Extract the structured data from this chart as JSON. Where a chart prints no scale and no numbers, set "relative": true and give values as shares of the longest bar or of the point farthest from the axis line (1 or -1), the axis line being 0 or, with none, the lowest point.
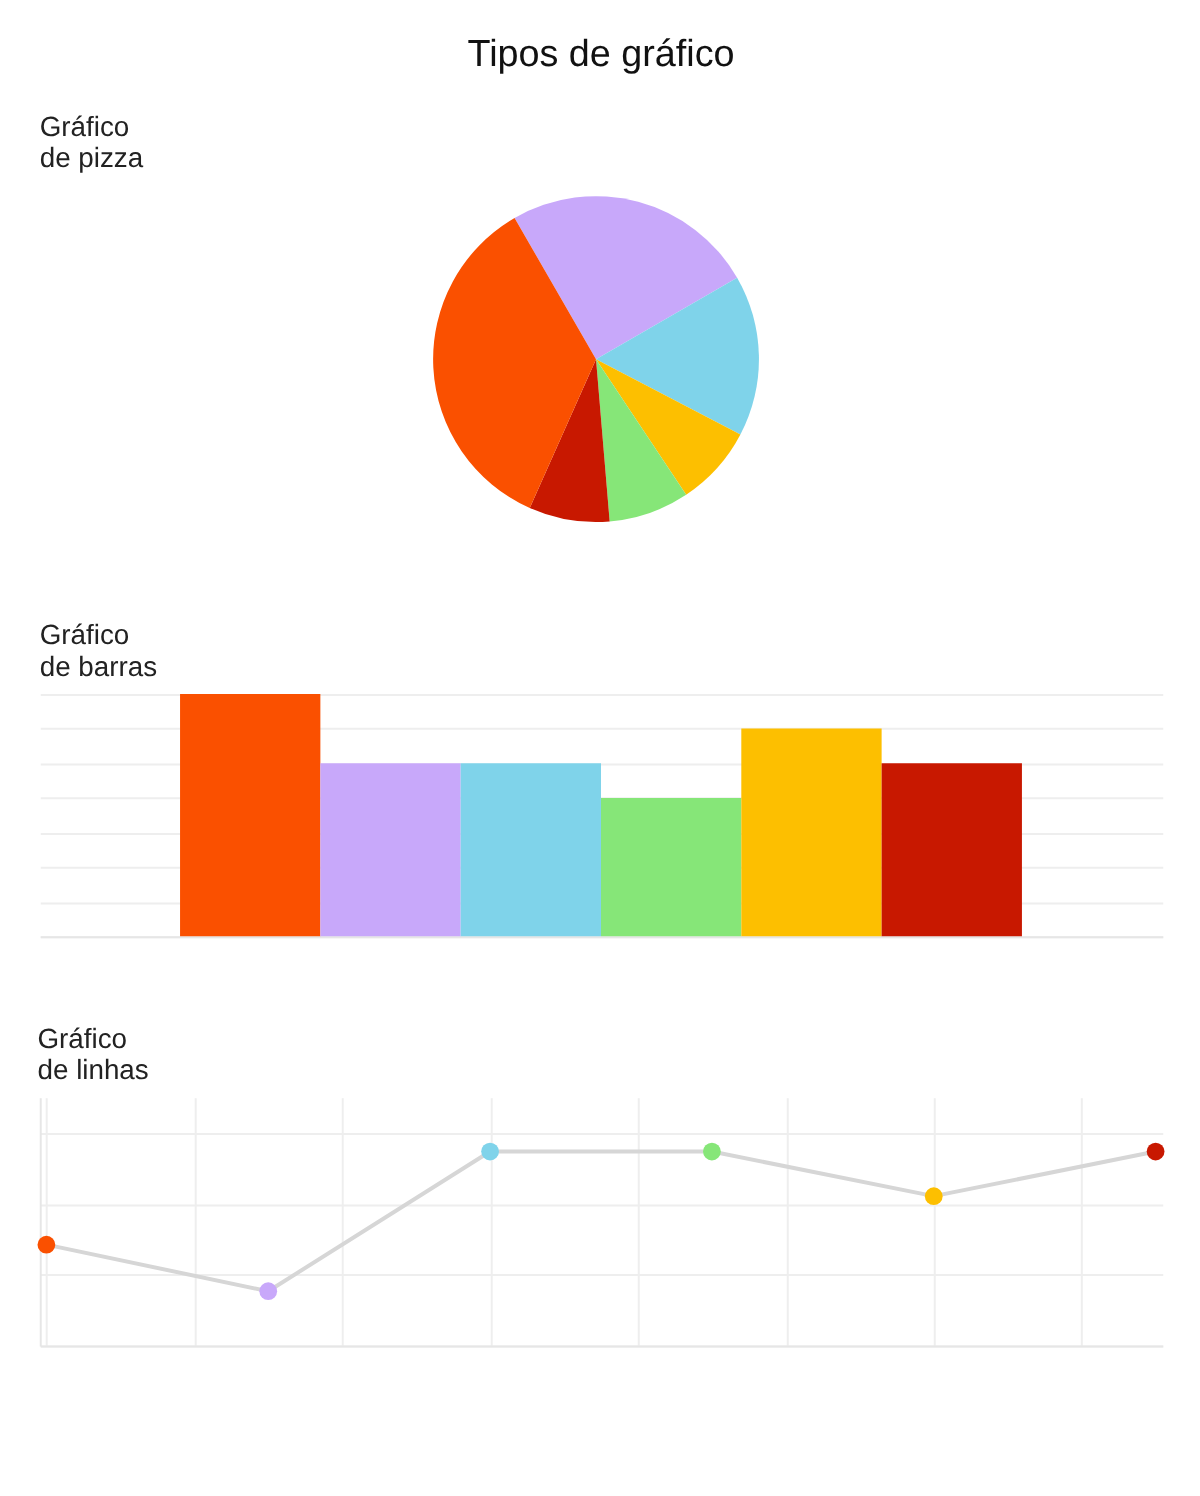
{
  "chart_data": [
    {
      "type": "pie",
      "title": "Gráfico de pizza",
      "annotations": [
        "Tipos de gráfico"
      ],
      "categories": [
        null,
        null,
        null,
        null,
        null,
        null
      ],
      "values": [
        25,
        16,
        8,
        8,
        8,
        35
      ],
      "colors": [
        "#c8a8fa",
        "#7fd3ea",
        "#fdbf00",
        "#86e678",
        "#c81800",
        "#fa5000"
      ]
    },
    {
      "type": "bar",
      "title": "Gráfico de barras",
      "categories": [
        null,
        null,
        null,
        null,
        null,
        null
      ],
      "relative": true,
      "values": [
        1,
        0.714,
        0.714,
        0.571,
        0.857,
        0.714
      ],
      "colors": [
        "#fa5000",
        "#c8a8fa",
        "#7fd3ea",
        "#86e678",
        "#fdbf00",
        "#c81800"
      ],
      "grid": "y"
    },
    {
      "type": "line",
      "title": "Gráfico de linhas",
      "categories": [
        null,
        null,
        null,
        null,
        null,
        null
      ],
      "relative": true,
      "series": [
        {
          "color": "#d6d6d6",
          "values": [
            0.52,
            0.28,
            1,
            1,
            0.77,
            1
          ],
          "colors": [
            "#fa5000",
            "#c8a8fa",
            "#7fd3ea",
            "#86e678",
            "#fdbf00",
            "#c81800"
          ]
        }
      ],
      "marker": "circle",
      "grid": true
    }
  ]
}
